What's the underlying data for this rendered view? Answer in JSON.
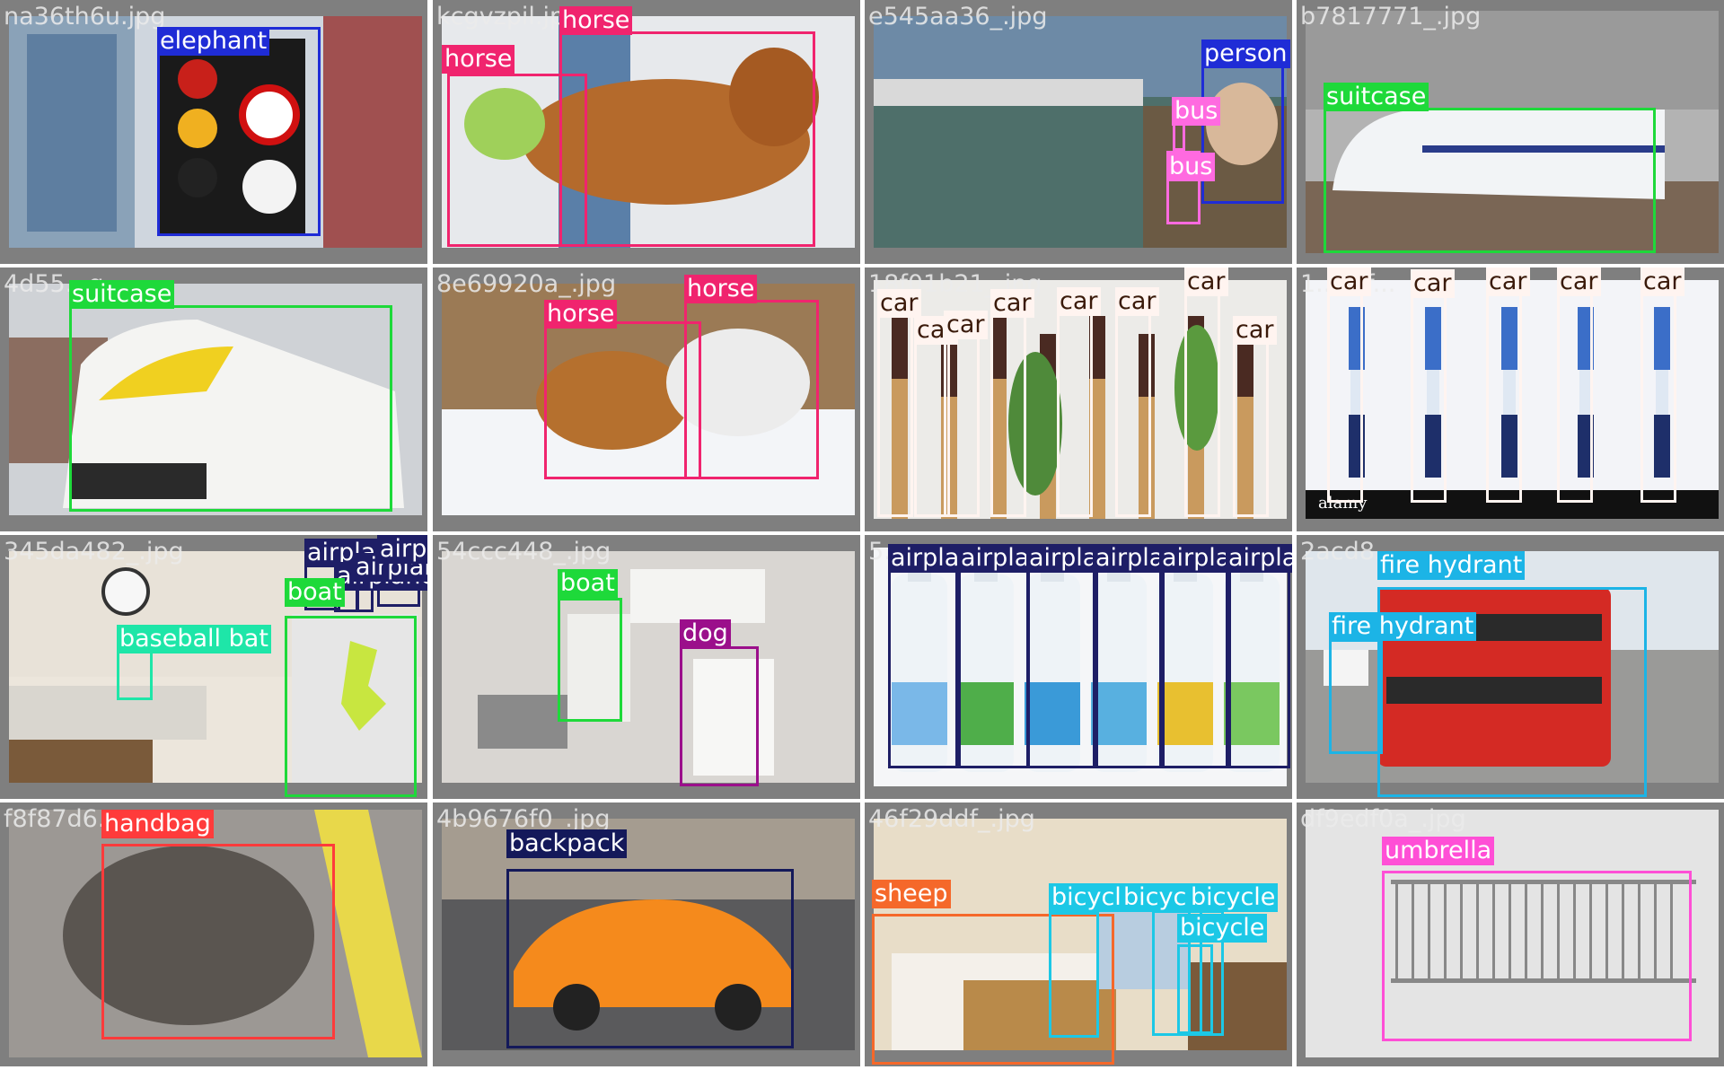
{
  "colors": {
    "elephant": "#1f2cd6",
    "horse": "#f0246e",
    "person": "#1f2cd6",
    "bus": "#ff6ae0",
    "suitcase": "#1ed93a",
    "car": "#fff4f0",
    "airplane": "#1e1e66",
    "boat": "#1ed93a",
    "dog": "#9b0f8b",
    "baseball bat": "#1ee6a8",
    "fire hydrant": "#1cb4e6",
    "handbag": "#ff3b3b",
    "backpack": "#14195a",
    "sheep": "#f5682a",
    "bicycle": "#1cc8e6",
    "umbrella": "#ff4fd6"
  },
  "tiles": [
    {
      "filename": "na36th6u.jpg",
      "scene": "traffic-light",
      "detections": [
        {
          "label": "elephant"
        }
      ]
    },
    {
      "filename": "kcgvzpil.jpg",
      "scene": "dog",
      "detections": [
        {
          "label": "horse"
        },
        {
          "label": "horse"
        }
      ]
    },
    {
      "filename": "e545aa36_.jpg",
      "scene": "harbor",
      "detections": [
        {
          "label": "person"
        },
        {
          "label": "bus"
        },
        {
          "label": "bus"
        }
      ]
    },
    {
      "filename": "b7817771_.jpg",
      "scene": "bullet-train",
      "detections": [
        {
          "label": "suitcase"
        }
      ]
    },
    {
      "filename": "4d55...g",
      "scene": "train",
      "detections": [
        {
          "label": "suitcase"
        }
      ]
    },
    {
      "filename": "8e69920a_.jpg",
      "scene": "dogs-snow",
      "detections": [
        {
          "label": "horse"
        },
        {
          "label": "horse"
        }
      ]
    },
    {
      "filename": "18f01b21_.jpg",
      "scene": "toothbrushes-wood",
      "detections": [
        {
          "label": "car"
        },
        {
          "label": "car"
        },
        {
          "label": "car"
        },
        {
          "label": "car"
        },
        {
          "label": "car"
        },
        {
          "label": "car"
        },
        {
          "label": "car"
        },
        {
          "label": "car"
        }
      ]
    },
    {
      "filename": "1...vzf...",
      "scene": "toothbrushes-blue",
      "detections": [
        {
          "label": "car"
        },
        {
          "label": "car"
        },
        {
          "label": "car"
        },
        {
          "label": "car"
        },
        {
          "label": "car"
        }
      ],
      "watermark": "alamy"
    },
    {
      "filename": "345da482_.jpg",
      "scene": "kitchen-fridge",
      "detections": [
        {
          "label": "airplane"
        },
        {
          "label": "airplane"
        },
        {
          "label": "airplane"
        },
        {
          "label": "airplane"
        },
        {
          "label": "boat"
        },
        {
          "label": "baseball bat"
        }
      ]
    },
    {
      "filename": "54ccc448_.jpg",
      "scene": "kitchen-stove",
      "detections": [
        {
          "label": "boat"
        },
        {
          "label": "dog"
        }
      ]
    },
    {
      "filename": "5...",
      "scene": "bottles",
      "detections": [
        {
          "label": "airplane"
        },
        {
          "label": "airplane"
        },
        {
          "label": "airplane"
        },
        {
          "label": "airplane"
        },
        {
          "label": "airplane"
        },
        {
          "label": "airplane"
        }
      ]
    },
    {
      "filename": "2acd8...",
      "scene": "double-decker",
      "detections": [
        {
          "label": "fire hydrant"
        },
        {
          "label": "fire hydrant"
        }
      ]
    },
    {
      "filename": "f8f87d6...",
      "scene": "pothole",
      "detections": [
        {
          "label": "handbag"
        }
      ]
    },
    {
      "filename": "4b9676f0_.jpg",
      "scene": "sports-car",
      "detections": [
        {
          "label": "backpack"
        }
      ]
    },
    {
      "filename": "46f29ddf_.jpg",
      "scene": "hotel-room",
      "detections": [
        {
          "label": "sheep"
        },
        {
          "label": "bicycle"
        },
        {
          "label": "bicycle"
        },
        {
          "label": "bicycle"
        },
        {
          "label": "bicycle"
        }
      ]
    },
    {
      "filename": "df9edf0a_.jpg",
      "scene": "barrier",
      "detections": [
        {
          "label": "umbrella"
        }
      ]
    }
  ]
}
